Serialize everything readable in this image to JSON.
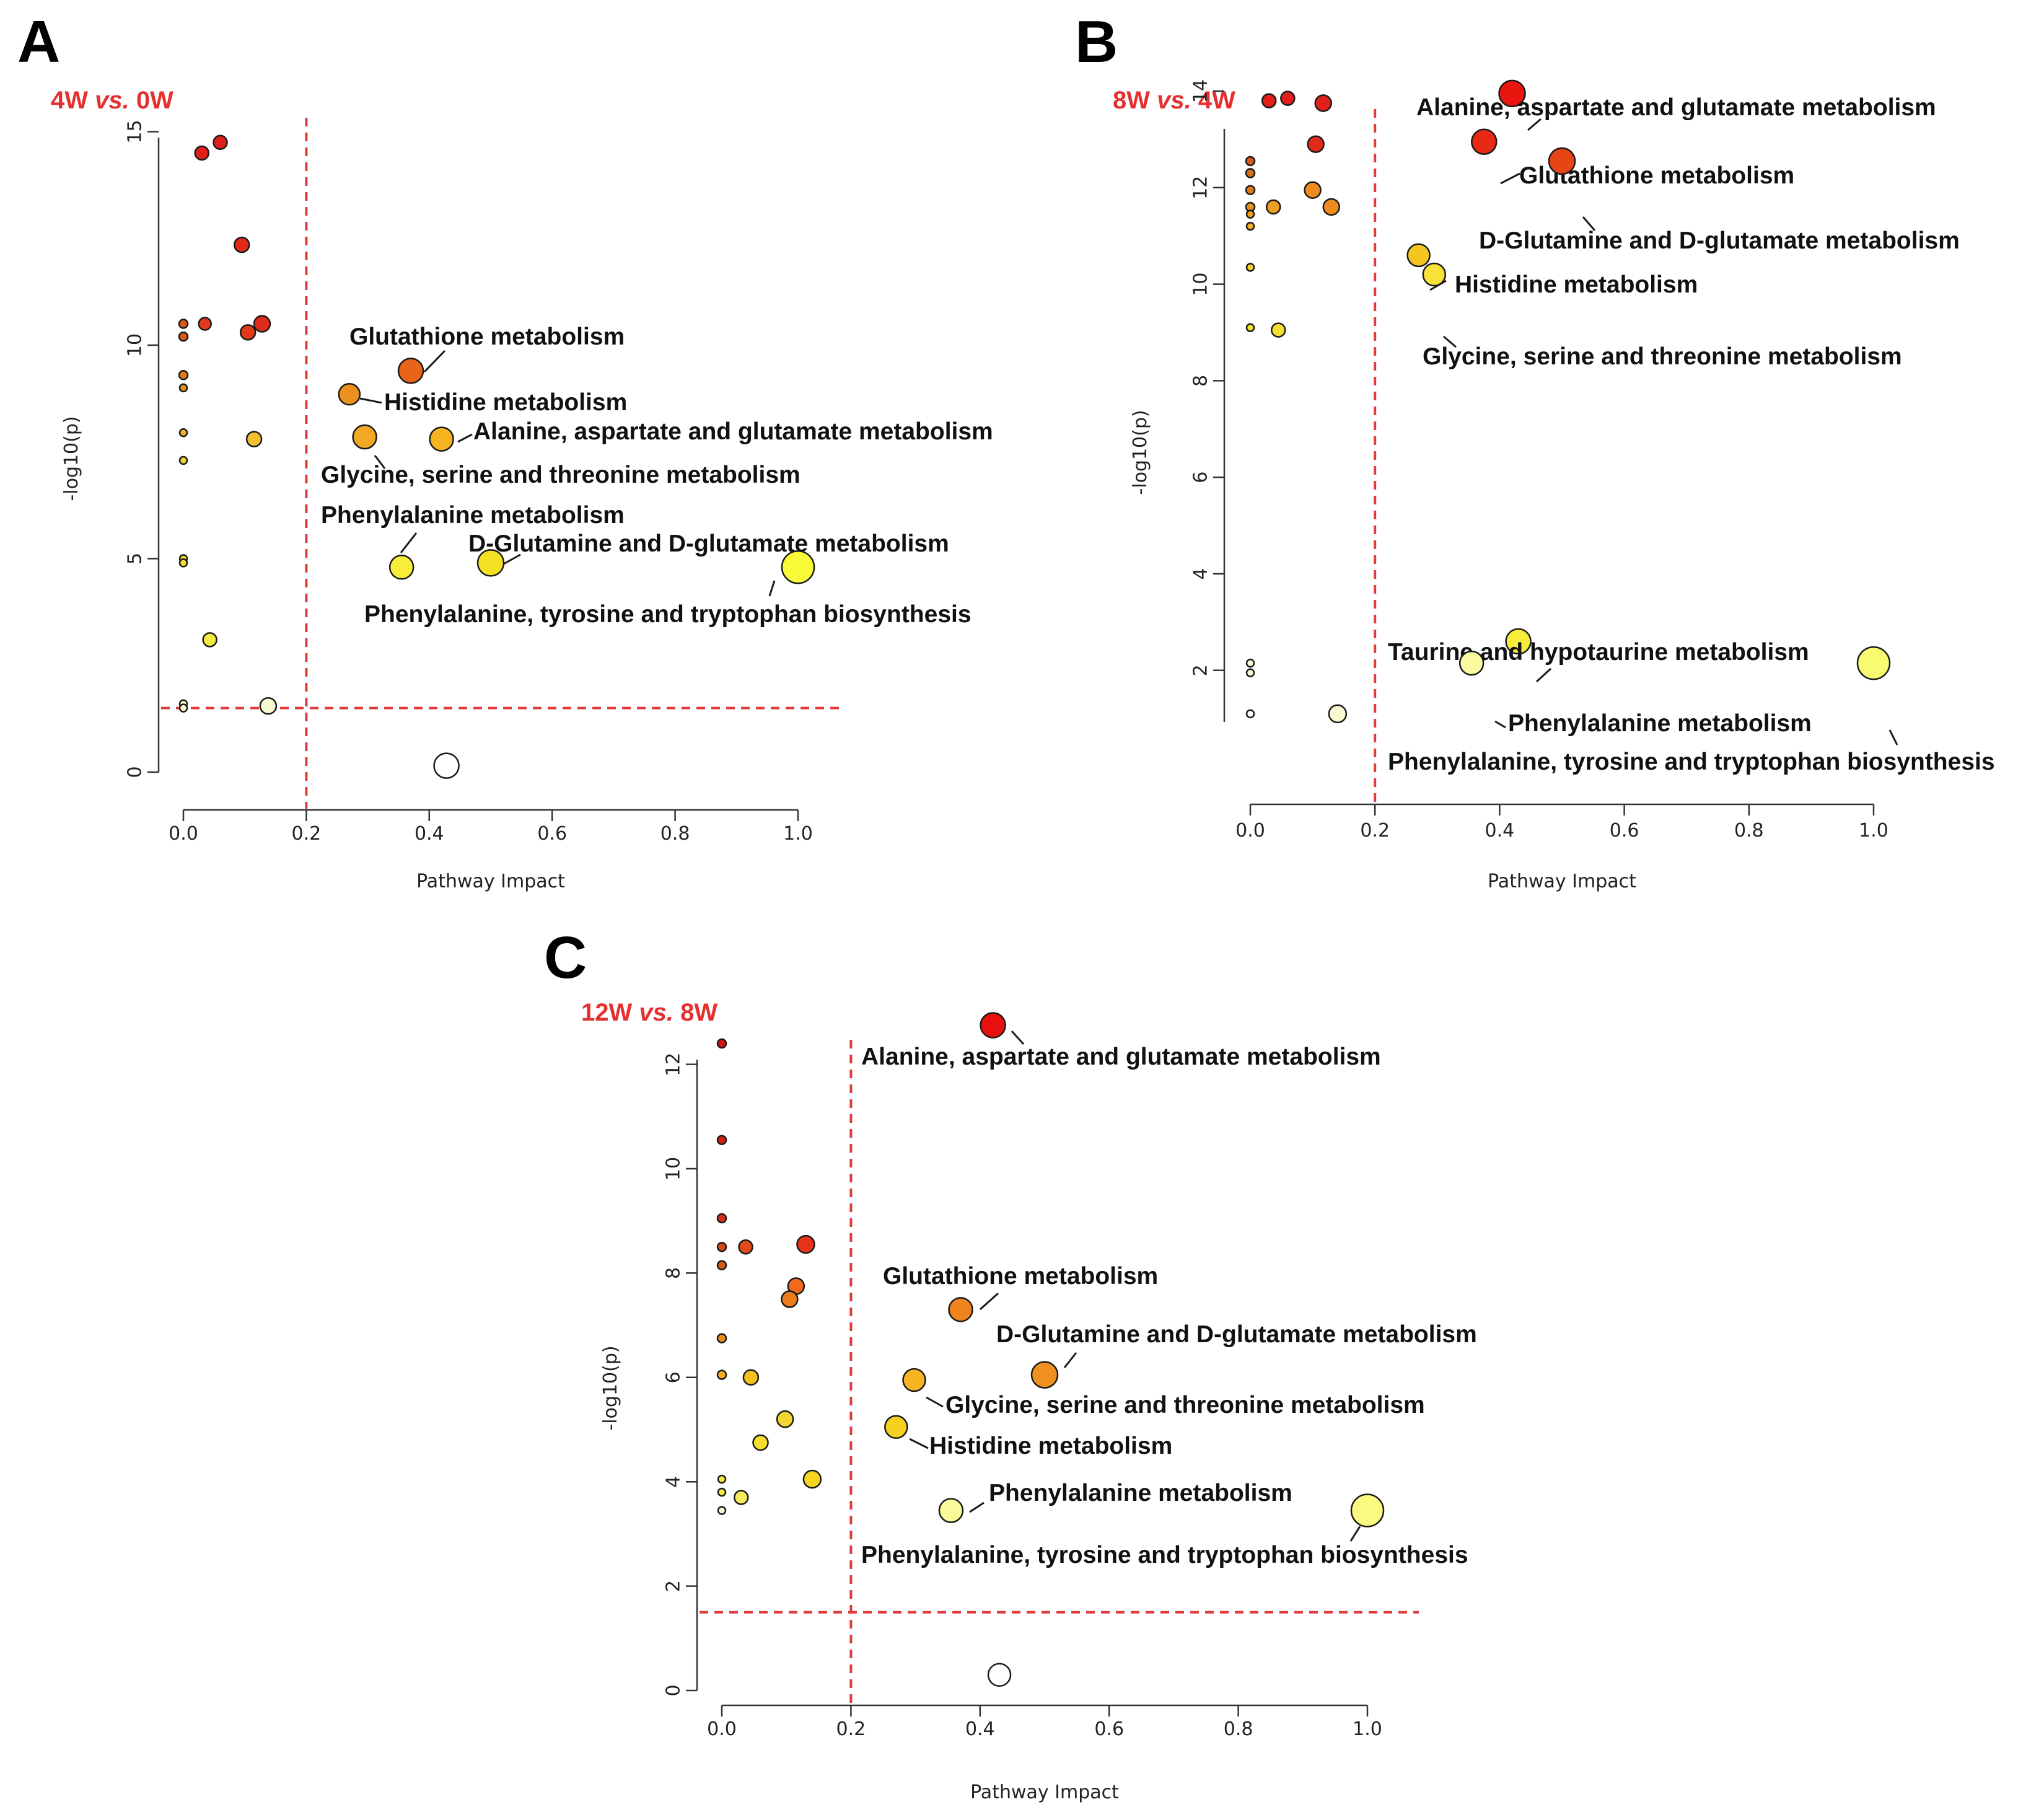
{
  "chart_data": [
    {
      "type": "scatter",
      "panel": "A",
      "subtitle": "4W vs. 0W",
      "subtitle_parts": [
        "4W",
        "vs.",
        "0W"
      ],
      "xlabel": "Pathway Impact",
      "ylabel": "-log10(p)",
      "xlim": [
        0,
        1.0
      ],
      "ylim": [
        0,
        15
      ],
      "xticks": [
        "0.0",
        "0.2",
        "0.4",
        "0.6",
        "0.8",
        "1.0"
      ],
      "yticks": [
        "0",
        "5",
        "10",
        "15"
      ],
      "threshold_lines": {
        "x": 0.2,
        "y": 1.5,
        "color": "#e03a3a"
      },
      "points": [
        {
          "x": 0.03,
          "y": 14.5,
          "color": "#e01f1a",
          "r": 11
        },
        {
          "x": 0.06,
          "y": 14.75,
          "color": "#e01f1a",
          "r": 11
        },
        {
          "x": 0.095,
          "y": 12.35,
          "color": "#e02a1a",
          "r": 12
        },
        {
          "x": 0.0,
          "y": 10.5,
          "color": "#d65a18",
          "r": 7
        },
        {
          "x": 0.0,
          "y": 10.2,
          "color": "#d65a18",
          "r": 7
        },
        {
          "x": 0.035,
          "y": 10.5,
          "color": "#e03a1a",
          "r": 10
        },
        {
          "x": 0.105,
          "y": 10.3,
          "color": "#e03a1a",
          "r": 12
        },
        {
          "x": 0.128,
          "y": 10.5,
          "color": "#e02a1a",
          "r": 13
        },
        {
          "x": 0.0,
          "y": 9.3,
          "color": "#e07a1a",
          "r": 7
        },
        {
          "x": 0.0,
          "y": 9.0,
          "color": "#e8901a",
          "r": 6
        },
        {
          "x": 0.0,
          "y": 7.95,
          "color": "#f0b020",
          "r": 6
        },
        {
          "x": 0.0,
          "y": 7.3,
          "color": "#f5d530",
          "r": 6
        },
        {
          "x": 0.115,
          "y": 7.8,
          "color": "#f5c030",
          "r": 12
        },
        {
          "x": 0.0,
          "y": 5.0,
          "color": "#f5d530",
          "r": 6
        },
        {
          "x": 0.0,
          "y": 4.9,
          "color": "#f5e030",
          "r": 6
        },
        {
          "x": 0.043,
          "y": 3.1,
          "color": "#f5ea40",
          "r": 11
        },
        {
          "x": 0.0,
          "y": 1.6,
          "color": "#fafad2",
          "r": 6
        },
        {
          "x": 0.0,
          "y": 1.5,
          "color": "#fafad2",
          "r": 6
        },
        {
          "x": 0.138,
          "y": 1.55,
          "color": "#fafad2",
          "r": 13
        },
        {
          "x": 0.428,
          "y": 0.15,
          "color": "#ffffff",
          "r": 20
        },
        {
          "x": 0.37,
          "y": 9.4,
          "color": "#e8641a",
          "r": 20,
          "label": "Glutathione metabolism"
        },
        {
          "x": 0.27,
          "y": 8.85,
          "color": "#ee901e",
          "r": 17,
          "label": "Histidine metabolism"
        },
        {
          "x": 0.295,
          "y": 7.85,
          "color": "#f2a825",
          "r": 19,
          "label": "Glycine, serine and threonine metabolism"
        },
        {
          "x": 0.42,
          "y": 7.8,
          "color": "#f5b420",
          "r": 19,
          "label": "Alanine, aspartate and glutamate metabolism"
        },
        {
          "x": 0.355,
          "y": 4.8,
          "color": "#f8ee3a",
          "r": 19,
          "label": "Phenylalanine metabolism"
        },
        {
          "x": 0.5,
          "y": 4.9,
          "color": "#f5e023",
          "r": 21,
          "label": "D-Glutamine and D-glutamate metabolism"
        },
        {
          "x": 1.0,
          "y": 4.8,
          "color": "#fafa38",
          "r": 26,
          "label": "Phenylalanine, tyrosine and tryptophan biosynthesis"
        }
      ]
    },
    {
      "type": "scatter",
      "panel": "B",
      "subtitle": "8W vs. 4W",
      "subtitle_parts": [
        "8W",
        "vs.",
        "4W"
      ],
      "xlabel": "Pathway Impact",
      "ylabel": "-log10(p)",
      "xlim": [
        0,
        1.0
      ],
      "ylim": [
        1,
        14
      ],
      "xticks": [
        "0.0",
        "0.2",
        "0.4",
        "0.6",
        "0.8",
        "1.0"
      ],
      "yticks": [
        "2",
        "4",
        "6",
        "8",
        "10",
        "12",
        "14"
      ],
      "threshold_lines": {
        "x": 0.2,
        "color": "#e03a3a"
      },
      "points": [
        {
          "x": 0.03,
          "y": 13.8,
          "color": "#e01f1a",
          "r": 11
        },
        {
          "x": 0.06,
          "y": 13.85,
          "color": "#e01f1a",
          "r": 11
        },
        {
          "x": 0.117,
          "y": 13.75,
          "color": "#e01f1a",
          "r": 13
        },
        {
          "x": 0.105,
          "y": 12.9,
          "color": "#e02a1a",
          "r": 13
        },
        {
          "x": 0.0,
          "y": 12.55,
          "color": "#d65a18",
          "r": 7
        },
        {
          "x": 0.0,
          "y": 12.3,
          "color": "#d67018",
          "r": 7
        },
        {
          "x": 0.0,
          "y": 11.95,
          "color": "#e07a1a",
          "r": 7
        },
        {
          "x": 0.0,
          "y": 11.6,
          "color": "#e8901a",
          "r": 7
        },
        {
          "x": 0.0,
          "y": 11.45,
          "color": "#f0a020",
          "r": 6
        },
        {
          "x": 0.0,
          "y": 11.2,
          "color": "#f0b020",
          "r": 6
        },
        {
          "x": 0.037,
          "y": 11.6,
          "color": "#eea025",
          "r": 11
        },
        {
          "x": 0.1,
          "y": 11.95,
          "color": "#ee8a1e",
          "r": 13
        },
        {
          "x": 0.13,
          "y": 11.6,
          "color": "#ee8a1e",
          "r": 13
        },
        {
          "x": 0.0,
          "y": 10.35,
          "color": "#f5d530",
          "r": 6
        },
        {
          "x": 0.0,
          "y": 9.1,
          "color": "#f5e030",
          "r": 6
        },
        {
          "x": 0.045,
          "y": 9.05,
          "color": "#f5e030",
          "r": 11
        },
        {
          "x": 0.0,
          "y": 2.15,
          "color": "#fafad2",
          "r": 6
        },
        {
          "x": 0.0,
          "y": 1.95,
          "color": "#fafad2",
          "r": 6
        },
        {
          "x": 0.0,
          "y": 1.1,
          "color": "#ffffff",
          "r": 6
        },
        {
          "x": 0.14,
          "y": 1.1,
          "color": "#fafad2",
          "r": 14
        },
        {
          "x": 0.42,
          "y": 13.95,
          "color": "#e8160f",
          "r": 21,
          "label": "Alanine, aspartate and glutamate metabolism"
        },
        {
          "x": 0.375,
          "y": 12.95,
          "color": "#e82a14",
          "r": 20,
          "label": "Glutathione metabolism"
        },
        {
          "x": 0.5,
          "y": 12.55,
          "color": "#e84515",
          "r": 21,
          "label": "D-Glutamine and D-glutamate metabolism"
        },
        {
          "x": 0.27,
          "y": 10.6,
          "color": "#f5c520",
          "r": 18,
          "label": "Histidine metabolism"
        },
        {
          "x": 0.295,
          "y": 10.2,
          "color": "#f8e23a",
          "r": 18,
          "label": "Glycine, serine and threonine metabolism"
        },
        {
          "x": 0.43,
          "y": 2.6,
          "color": "#f8ee3a",
          "r": 20,
          "label": "Taurine and hypotaurine metabolism"
        },
        {
          "x": 0.355,
          "y": 2.15,
          "color": "#fafaa0",
          "r": 19,
          "label": "Phenylalanine metabolism"
        },
        {
          "x": 1.0,
          "y": 2.15,
          "color": "#fafa70",
          "r": 26,
          "label": "Phenylalanine, tyrosine and tryptophan biosynthesis"
        }
      ]
    },
    {
      "type": "scatter",
      "panel": "C",
      "subtitle": "12W vs. 8W",
      "subtitle_parts": [
        "12W",
        "vs.",
        "8W"
      ],
      "xlabel": "Pathway Impact",
      "ylabel": "-log10(p)",
      "xlim": [
        0,
        1.0
      ],
      "ylim": [
        0,
        12
      ],
      "xticks": [
        "0.0",
        "0.2",
        "0.4",
        "0.6",
        "0.8",
        "1.0"
      ],
      "yticks": [
        "0",
        "2",
        "4",
        "6",
        "8",
        "10",
        "12"
      ],
      "threshold_lines": {
        "x": 0.2,
        "y": 1.5,
        "color": "#e03a3a"
      },
      "points": [
        {
          "x": 0.0,
          "y": 12.4,
          "color": "#d0150f",
          "r": 7
        },
        {
          "x": 0.0,
          "y": 10.55,
          "color": "#d0200f",
          "r": 7
        },
        {
          "x": 0.0,
          "y": 9.05,
          "color": "#d6301a",
          "r": 7
        },
        {
          "x": 0.0,
          "y": 8.5,
          "color": "#d64a1a",
          "r": 7
        },
        {
          "x": 0.0,
          "y": 8.15,
          "color": "#d65a1a",
          "r": 7
        },
        {
          "x": 0.037,
          "y": 8.5,
          "color": "#e04a1a",
          "r": 11
        },
        {
          "x": 0.13,
          "y": 8.55,
          "color": "#e8321a",
          "r": 14
        },
        {
          "x": 0.115,
          "y": 7.75,
          "color": "#ee6a1e",
          "r": 13
        },
        {
          "x": 0.105,
          "y": 7.5,
          "color": "#ee7a1e",
          "r": 13
        },
        {
          "x": 0.0,
          "y": 6.75,
          "color": "#e8901a",
          "r": 7
        },
        {
          "x": 0.0,
          "y": 6.05,
          "color": "#f0b020",
          "r": 7
        },
        {
          "x": 0.045,
          "y": 6.0,
          "color": "#f5c020",
          "r": 12
        },
        {
          "x": 0.098,
          "y": 5.2,
          "color": "#f5d530",
          "r": 13
        },
        {
          "x": 0.06,
          "y": 4.75,
          "color": "#f5e030",
          "r": 12
        },
        {
          "x": 0.14,
          "y": 4.05,
          "color": "#f5d520",
          "r": 14
        },
        {
          "x": 0.0,
          "y": 4.05,
          "color": "#f5ea40",
          "r": 6
        },
        {
          "x": 0.0,
          "y": 3.8,
          "color": "#f5ea40",
          "r": 6
        },
        {
          "x": 0.03,
          "y": 3.7,
          "color": "#f5ea60",
          "r": 11
        },
        {
          "x": 0.0,
          "y": 3.45,
          "color": "#fafad2",
          "r": 6
        },
        {
          "x": 0.43,
          "y": 0.3,
          "color": "#ffffff",
          "r": 18
        },
        {
          "x": 0.42,
          "y": 12.75,
          "color": "#e8100e",
          "r": 20,
          "label": "Alanine, aspartate and glutamate metabolism"
        },
        {
          "x": 0.37,
          "y": 7.3,
          "color": "#ee841e",
          "r": 19,
          "label": "Glutathione metabolism"
        },
        {
          "x": 0.5,
          "y": 6.05,
          "color": "#f09020",
          "r": 21,
          "label": "D-Glutamine and D-glutamate metabolism"
        },
        {
          "x": 0.298,
          "y": 5.95,
          "color": "#f5b420",
          "r": 18,
          "label": "Glycine, serine and threonine metabolism"
        },
        {
          "x": 0.27,
          "y": 5.05,
          "color": "#f5d020",
          "r": 18,
          "label": "Histidine metabolism"
        },
        {
          "x": 0.355,
          "y": 3.45,
          "color": "#fafa9a",
          "r": 19,
          "label": "Phenylalanine metabolism"
        },
        {
          "x": 1.0,
          "y": 3.45,
          "color": "#fafa80",
          "r": 26,
          "label": "Phenylalanine, tyrosine and tryptophan biosynthesis"
        }
      ]
    }
  ]
}
